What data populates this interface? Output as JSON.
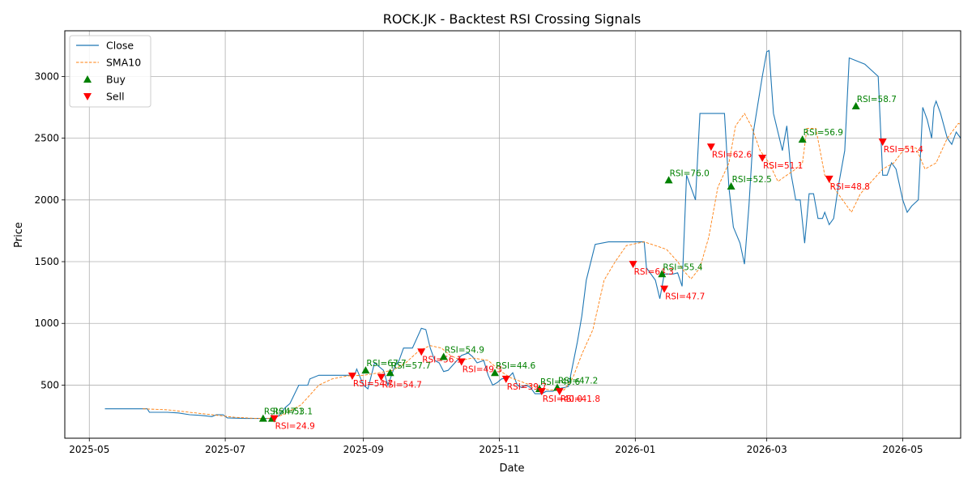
{
  "chart_data": {
    "type": "line",
    "title": "ROCK.JK - Backtest RSI Crossing Signals",
    "xlabel": "Date",
    "ylabel": "Price",
    "grid": true,
    "legend_position": "top-left",
    "x_range": [
      "2025-04-20",
      "2026-05-27"
    ],
    "y_range": [
      70,
      3370
    ],
    "x_ticks": [
      {
        "date": "2025-05-01",
        "label": "2025-05"
      },
      {
        "date": "2025-07-01",
        "label": "2025-07"
      },
      {
        "date": "2025-09-01",
        "label": "2025-09"
      },
      {
        "date": "2025-11-01",
        "label": "2025-11"
      },
      {
        "date": "2026-01-01",
        "label": "2026-01"
      },
      {
        "date": "2026-03-01",
        "label": "2026-03"
      },
      {
        "date": "2026-05-01",
        "label": "2026-05"
      }
    ],
    "y_ticks": [
      500,
      1000,
      1500,
      2000,
      2500,
      3000
    ],
    "legend": [
      {
        "label": "Close",
        "kind": "line",
        "color": "#1f77b4"
      },
      {
        "label": "SMA10",
        "kind": "dashed",
        "color": "#ff7f0e"
      },
      {
        "label": "Buy",
        "kind": "up-triangle",
        "color": "#008000"
      },
      {
        "label": "Sell",
        "kind": "down-triangle",
        "color": "#ff0000"
      }
    ],
    "series": [
      {
        "name": "Close",
        "color": "#1f77b4",
        "points": [
          [
            "2025-05-08",
            308
          ],
          [
            "2025-05-15",
            308
          ],
          [
            "2025-05-22",
            308
          ],
          [
            "2025-05-27",
            308
          ],
          [
            "2025-05-28",
            280
          ],
          [
            "2025-06-05",
            280
          ],
          [
            "2025-06-10",
            275
          ],
          [
            "2025-06-15",
            260
          ],
          [
            "2025-06-20",
            255
          ],
          [
            "2025-06-25",
            245
          ],
          [
            "2025-06-27",
            260
          ],
          [
            "2025-06-30",
            260
          ],
          [
            "2025-07-02",
            235
          ],
          [
            "2025-07-10",
            230
          ],
          [
            "2025-07-17",
            230
          ],
          [
            "2025-07-22",
            230
          ],
          [
            "2025-07-25",
            250
          ],
          [
            "2025-07-28",
            320
          ],
          [
            "2025-07-30",
            350
          ],
          [
            "2025-08-03",
            500
          ],
          [
            "2025-08-05",
            500
          ],
          [
            "2025-08-07",
            500
          ],
          [
            "2025-08-08",
            550
          ],
          [
            "2025-08-12",
            580
          ],
          [
            "2025-08-20",
            580
          ],
          [
            "2025-08-28",
            580
          ],
          [
            "2025-08-29",
            630
          ],
          [
            "2025-09-01",
            500
          ],
          [
            "2025-09-03",
            470
          ],
          [
            "2025-09-06",
            680
          ],
          [
            "2025-09-10",
            620
          ],
          [
            "2025-09-12",
            500
          ],
          [
            "2025-09-15",
            650
          ],
          [
            "2025-09-17",
            700
          ],
          [
            "2025-09-19",
            800
          ],
          [
            "2025-09-21",
            800
          ],
          [
            "2025-09-23",
            800
          ],
          [
            "2025-09-27",
            960
          ],
          [
            "2025-09-29",
            950
          ],
          [
            "2025-10-01",
            800
          ],
          [
            "2025-10-03",
            700
          ],
          [
            "2025-10-05",
            680
          ],
          [
            "2025-10-07",
            610
          ],
          [
            "2025-10-09",
            620
          ],
          [
            "2025-10-11",
            660
          ],
          [
            "2025-10-13",
            700
          ],
          [
            "2025-10-15",
            740
          ],
          [
            "2025-10-18",
            760
          ],
          [
            "2025-10-20",
            730
          ],
          [
            "2025-10-22",
            680
          ],
          [
            "2025-10-25",
            700
          ],
          [
            "2025-10-27",
            580
          ],
          [
            "2025-10-29",
            500
          ],
          [
            "2025-10-31",
            520
          ],
          [
            "2025-11-02",
            550
          ],
          [
            "2025-11-05",
            560
          ],
          [
            "2025-11-07",
            600
          ],
          [
            "2025-11-09",
            500
          ],
          [
            "2025-11-11",
            480
          ],
          [
            "2025-11-13",
            500
          ],
          [
            "2025-11-15",
            480
          ],
          [
            "2025-11-17",
            430
          ],
          [
            "2025-11-20",
            430
          ],
          [
            "2025-11-22",
            450
          ],
          [
            "2025-11-25",
            450
          ],
          [
            "2025-11-27",
            470
          ],
          [
            "2025-11-30",
            480
          ],
          [
            "2025-12-02",
            490
          ],
          [
            "2025-12-06",
            850
          ],
          [
            "2025-12-08",
            1060
          ],
          [
            "2025-12-10",
            1350
          ],
          [
            "2025-12-14",
            1640
          ],
          [
            "2025-12-20",
            1660
          ],
          [
            "2025-12-28",
            1660
          ],
          [
            "2026-01-05",
            1660
          ],
          [
            "2026-01-06",
            1450
          ],
          [
            "2026-01-10",
            1350
          ],
          [
            "2026-01-12",
            1200
          ],
          [
            "2026-01-14",
            1400
          ],
          [
            "2026-01-16",
            1400
          ],
          [
            "2026-01-18",
            1400
          ],
          [
            "2026-01-20",
            1410
          ],
          [
            "2026-01-22",
            1300
          ],
          [
            "2026-01-24",
            2200
          ],
          [
            "2026-01-26",
            2100
          ],
          [
            "2026-01-28",
            2000
          ],
          [
            "2026-01-30",
            2700
          ],
          [
            "2026-02-06",
            2700
          ],
          [
            "2026-02-10",
            2700
          ],
          [
            "2026-02-12",
            2100
          ],
          [
            "2026-02-14",
            1780
          ],
          [
            "2026-02-17",
            1650
          ],
          [
            "2026-02-19",
            1480
          ],
          [
            "2026-02-21",
            1950
          ],
          [
            "2026-02-23",
            2550
          ],
          [
            "2026-02-27",
            3000
          ],
          [
            "2026-03-01",
            3200
          ],
          [
            "2026-03-02",
            3210
          ],
          [
            "2026-03-04",
            2700
          ],
          [
            "2026-03-08",
            2400
          ],
          [
            "2026-03-10",
            2600
          ],
          [
            "2026-03-12",
            2200
          ],
          [
            "2026-03-14",
            2000
          ],
          [
            "2026-03-16",
            2000
          ],
          [
            "2026-03-18",
            1650
          ],
          [
            "2026-03-20",
            2050
          ],
          [
            "2026-03-22",
            2050
          ],
          [
            "2026-03-24",
            1850
          ],
          [
            "2026-03-26",
            1850
          ],
          [
            "2026-03-27",
            1900
          ],
          [
            "2026-03-29",
            1800
          ],
          [
            "2026-03-31",
            1850
          ],
          [
            "2026-04-02",
            2100
          ],
          [
            "2026-04-05",
            2400
          ],
          [
            "2026-04-07",
            3150
          ],
          [
            "2026-04-14",
            3100
          ],
          [
            "2026-04-20",
            3000
          ],
          [
            "2026-04-22",
            2200
          ],
          [
            "2026-04-24",
            2200
          ],
          [
            "2026-04-26",
            2300
          ],
          [
            "2026-04-28",
            2250
          ],
          [
            "2026-05-01",
            2000
          ],
          [
            "2026-05-03",
            1900
          ],
          [
            "2026-05-05",
            1950
          ],
          [
            "2026-05-08",
            2000
          ],
          [
            "2026-05-10",
            2750
          ],
          [
            "2026-05-12",
            2650
          ],
          [
            "2026-05-14",
            2500
          ],
          [
            "2026-05-15",
            2750
          ],
          [
            "2026-05-16",
            2800
          ],
          [
            "2026-05-18",
            2700
          ],
          [
            "2026-05-21",
            2500
          ],
          [
            "2026-05-23",
            2450
          ],
          [
            "2026-05-25",
            2550
          ],
          [
            "2026-05-27",
            2500
          ],
          [
            "2026-05-30",
            2520
          ],
          [
            "2026-06-01",
            2500
          ],
          [
            "2026-06-02",
            2300
          ],
          [
            "2026-06-08",
            2350
          ],
          [
            "2026-06-10",
            2380
          ],
          [
            "2026-06-12",
            2400
          ],
          [
            "2026-06-14",
            2360
          ]
        ]
      },
      {
        "name": "SMA10",
        "color": "#ff7f0e",
        "points": [
          [
            "2025-05-25",
            308
          ],
          [
            "2025-06-05",
            300
          ],
          [
            "2025-06-15",
            280
          ],
          [
            "2025-06-25",
            260
          ],
          [
            "2025-07-05",
            240
          ],
          [
            "2025-07-15",
            230
          ],
          [
            "2025-07-22",
            232
          ],
          [
            "2025-07-27",
            260
          ],
          [
            "2025-07-31",
            300
          ],
          [
            "2025-08-04",
            340
          ],
          [
            "2025-08-08",
            420
          ],
          [
            "2025-08-12",
            500
          ],
          [
            "2025-08-18",
            550
          ],
          [
            "2025-08-25",
            575
          ],
          [
            "2025-09-01",
            580
          ],
          [
            "2025-09-08",
            600
          ],
          [
            "2025-09-14",
            620
          ],
          [
            "2025-09-20",
            680
          ],
          [
            "2025-09-26",
            780
          ],
          [
            "2025-10-01",
            820
          ],
          [
            "2025-10-06",
            800
          ],
          [
            "2025-10-10",
            740
          ],
          [
            "2025-10-15",
            700
          ],
          [
            "2025-10-20",
            720
          ],
          [
            "2025-10-27",
            700
          ],
          [
            "2025-11-01",
            620
          ],
          [
            "2025-11-06",
            560
          ],
          [
            "2025-11-12",
            520
          ],
          [
            "2025-11-18",
            480
          ],
          [
            "2025-11-24",
            460
          ],
          [
            "2025-11-30",
            460
          ],
          [
            "2025-12-04",
            560
          ],
          [
            "2025-12-08",
            750
          ],
          [
            "2025-12-13",
            950
          ],
          [
            "2025-12-18",
            1350
          ],
          [
            "2025-12-23",
            1500
          ],
          [
            "2025-12-28",
            1630
          ],
          [
            "2026-01-05",
            1660
          ],
          [
            "2026-01-10",
            1630
          ],
          [
            "2026-01-15",
            1600
          ],
          [
            "2026-01-20",
            1500
          ],
          [
            "2026-01-23",
            1420
          ],
          [
            "2026-01-26",
            1360
          ],
          [
            "2026-01-30",
            1450
          ],
          [
            "2026-02-03",
            1700
          ],
          [
            "2026-02-07",
            2100
          ],
          [
            "2026-02-12",
            2300
          ],
          [
            "2026-02-15",
            2600
          ],
          [
            "2026-02-19",
            2700
          ],
          [
            "2026-02-22",
            2600
          ],
          [
            "2026-02-26",
            2400
          ],
          [
            "2026-03-02",
            2300
          ],
          [
            "2026-03-06",
            2150
          ],
          [
            "2026-03-10",
            2200
          ],
          [
            "2026-03-14",
            2250
          ],
          [
            "2026-03-17",
            2300
          ],
          [
            "2026-03-19",
            2580
          ],
          [
            "2026-03-23",
            2580
          ],
          [
            "2026-03-27",
            2200
          ],
          [
            "2026-03-31",
            2100
          ],
          [
            "2026-04-04",
            2000
          ],
          [
            "2026-04-08",
            1900
          ],
          [
            "2026-04-12",
            2050
          ],
          [
            "2026-04-17",
            2150
          ],
          [
            "2026-04-22",
            2250
          ],
          [
            "2026-04-27",
            2300
          ],
          [
            "2026-05-02",
            2420
          ],
          [
            "2026-05-07",
            2420
          ],
          [
            "2026-05-11",
            2250
          ],
          [
            "2026-05-16",
            2300
          ],
          [
            "2026-05-21",
            2500
          ],
          [
            "2026-05-26",
            2620
          ],
          [
            "2026-05-31",
            2580
          ],
          [
            "2026-06-04",
            2570
          ],
          [
            "2026-06-08",
            2450
          ],
          [
            "2026-06-12",
            2430
          ]
        ]
      }
    ],
    "signals": [
      {
        "type": "buy",
        "date": "2025-07-18",
        "price": 230,
        "label": "RSI=47.1"
      },
      {
        "type": "buy",
        "date": "2025-07-22",
        "price": 230,
        "label": "RSI=53.1"
      },
      {
        "type": "sell",
        "date": "2025-07-23",
        "price": 230,
        "label": "RSI=24.9"
      },
      {
        "type": "sell",
        "date": "2025-08-27",
        "price": 575,
        "label": "RSI=54.7"
      },
      {
        "type": "buy",
        "date": "2025-09-02",
        "price": 620,
        "label": "RSI=67.7"
      },
      {
        "type": "sell",
        "date": "2025-09-09",
        "price": 565,
        "label": "RSI=54.7"
      },
      {
        "type": "buy",
        "date": "2025-09-13",
        "price": 600,
        "label": "RSI=57.7"
      },
      {
        "type": "sell",
        "date": "2025-09-27",
        "price": 770,
        "label": "RSI=56.1"
      },
      {
        "type": "buy",
        "date": "2025-10-07",
        "price": 730,
        "label": "RSI=54.9"
      },
      {
        "type": "sell",
        "date": "2025-10-15",
        "price": 690,
        "label": "RSI=49.3"
      },
      {
        "type": "buy",
        "date": "2025-10-30",
        "price": 600,
        "label": "RSI=44.6"
      },
      {
        "type": "sell",
        "date": "2025-11-04",
        "price": 550,
        "label": "RSI=39.7"
      },
      {
        "type": "buy",
        "date": "2025-11-19",
        "price": 470,
        "label": "RSI=49.6"
      },
      {
        "type": "sell",
        "date": "2025-11-20",
        "price": 450,
        "label": "RSI=40.0"
      },
      {
        "type": "buy",
        "date": "2025-11-27",
        "price": 480,
        "label": "RSI=47.2"
      },
      {
        "type": "sell",
        "date": "2025-11-28",
        "price": 450,
        "label": "RSI=41.8"
      },
      {
        "type": "sell",
        "date": "2025-12-31",
        "price": 1480,
        "label": "RSI=64.3"
      },
      {
        "type": "buy",
        "date": "2026-01-13",
        "price": 1400,
        "label": "RSI=55.4"
      },
      {
        "type": "sell",
        "date": "2026-01-14",
        "price": 1280,
        "label": "RSI=47.7"
      },
      {
        "type": "buy",
        "date": "2026-01-16",
        "price": 2160,
        "label": "RSI=76.0"
      },
      {
        "type": "sell",
        "date": "2026-02-04",
        "price": 2430,
        "label": "RSI=62.6"
      },
      {
        "type": "buy",
        "date": "2026-02-13",
        "price": 2110,
        "label": "RSI=52.5"
      },
      {
        "type": "sell",
        "date": "2026-02-27",
        "price": 2340,
        "label": "RSI=51.1"
      },
      {
        "type": "buy",
        "date": "2026-03-17",
        "price": 2490,
        "label": "RSI=56.9"
      },
      {
        "type": "sell",
        "date": "2026-03-29",
        "price": 2170,
        "label": "RSI=48.8"
      },
      {
        "type": "buy",
        "date": "2026-04-10",
        "price": 2760,
        "label": "RSI=58.7"
      },
      {
        "type": "sell",
        "date": "2026-04-22",
        "price": 2470,
        "label": "RSI=51.4"
      }
    ]
  }
}
